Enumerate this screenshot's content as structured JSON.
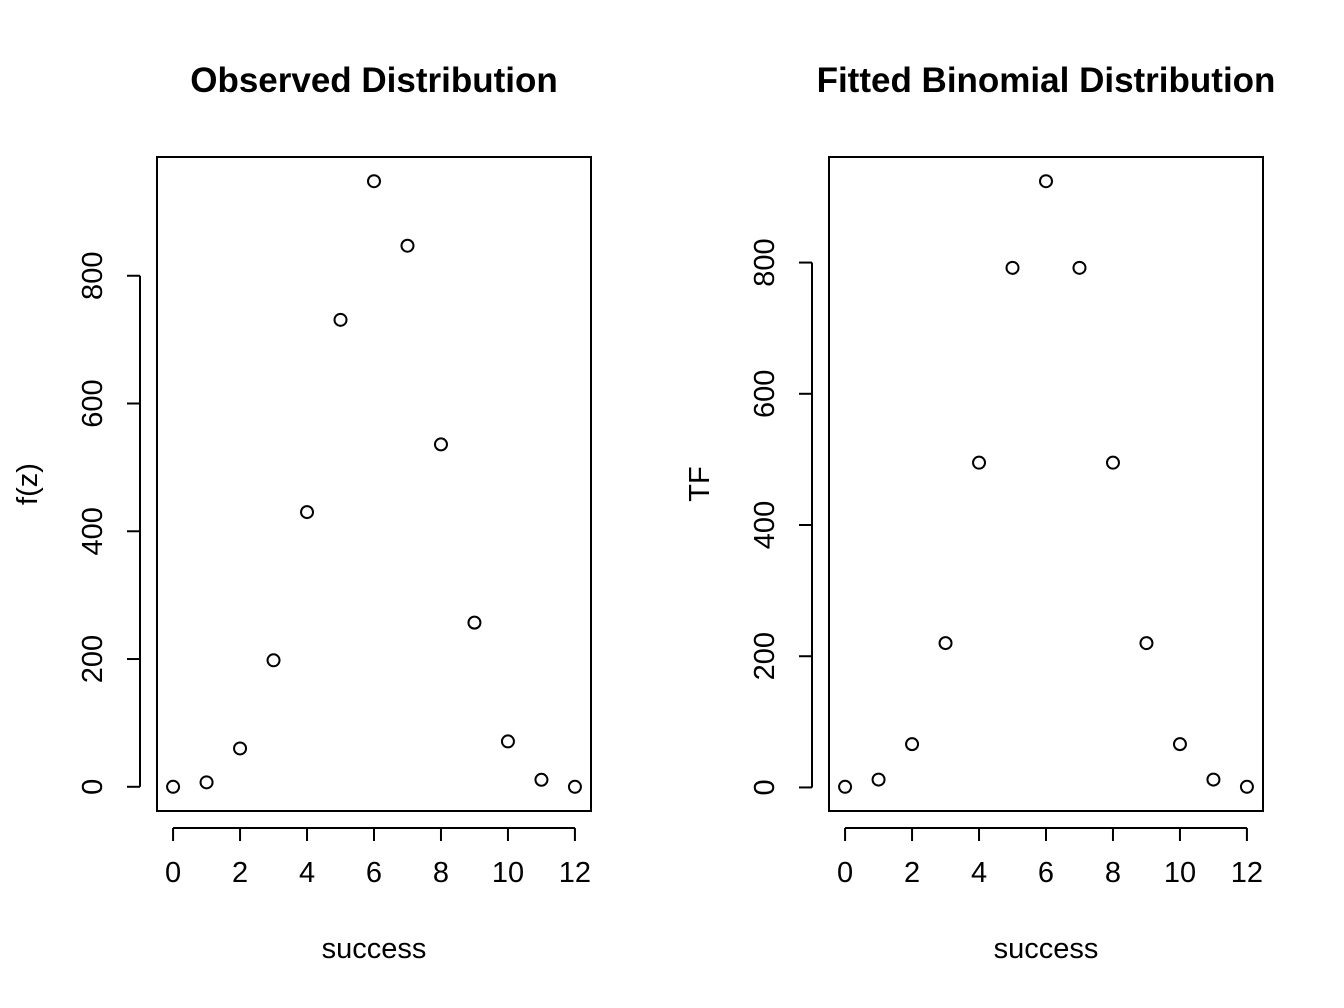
{
  "chart_data": [
    {
      "type": "scatter",
      "title": "Observed Distribution",
      "xlabel": "success",
      "ylabel": "f(z)",
      "x": [
        0,
        1,
        2,
        3,
        4,
        5,
        6,
        7,
        8,
        9,
        10,
        11,
        12
      ],
      "y": [
        0,
        7,
        60,
        198,
        430,
        731,
        948,
        847,
        536,
        257,
        71,
        11,
        0
      ],
      "xticks": [
        0,
        2,
        4,
        6,
        8,
        10,
        12
      ],
      "yticks": [
        0,
        200,
        400,
        600,
        800
      ],
      "xlim": [
        -0.48,
        12.48
      ],
      "ylim": [
        -37.9,
        985.9
      ],
      "marker": "open-circle",
      "color": "#000000"
    },
    {
      "type": "scatter",
      "title": "Fitted Binomial Distribution",
      "xlabel": "success",
      "ylabel": "TF",
      "x": [
        0,
        1,
        2,
        3,
        4,
        5,
        6,
        7,
        8,
        9,
        10,
        11,
        12
      ],
      "y": [
        1,
        12,
        66,
        220,
        495,
        792,
        924,
        792,
        495,
        220,
        66,
        12,
        1
      ],
      "xticks": [
        0,
        2,
        4,
        6,
        8,
        10,
        12
      ],
      "yticks": [
        0,
        200,
        400,
        600,
        800
      ],
      "xlim": [
        -0.48,
        12.48
      ],
      "ylim": [
        -35.9,
        960.9
      ],
      "marker": "open-circle",
      "color": "#000000"
    }
  ]
}
